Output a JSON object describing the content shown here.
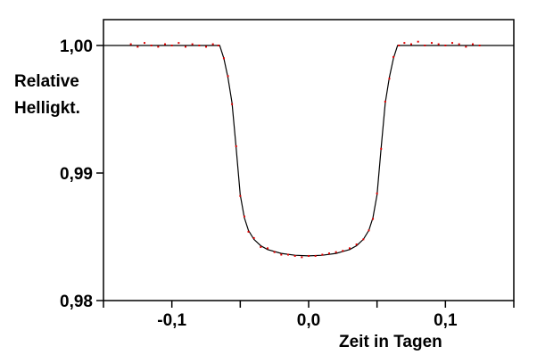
{
  "chart_data": {
    "type": "scatter",
    "title": "",
    "xlabel": "Zeit in Tagen",
    "ylabel_lines": [
      "Relative",
      "Hellig​kt."
    ],
    "xlim": [
      -0.15,
      0.15
    ],
    "ylim": [
      0.98,
      1.002
    ],
    "x_ticks": [
      {
        "value": -0.1,
        "label": "-0,1"
      },
      {
        "value": 0.0,
        "label": "0,0"
      },
      {
        "value": 0.1,
        "label": "0,1"
      }
    ],
    "y_ticks": [
      {
        "value": 1.0,
        "label": "1,00"
      },
      {
        "value": 0.99,
        "label": "0,99"
      },
      {
        "value": 0.98,
        "label": "0,98"
      }
    ],
    "grid": false,
    "legend": "none",
    "series": [
      {
        "kind": "line",
        "color": "#000000",
        "x": [
          -0.15,
          -0.065,
          -0.062,
          -0.059,
          -0.056,
          -0.053,
          -0.05,
          -0.047,
          -0.044,
          -0.04,
          -0.035,
          -0.03,
          -0.02,
          -0.01,
          0.0,
          0.01,
          0.02,
          0.03,
          0.035,
          0.04,
          0.044,
          0.047,
          0.05,
          0.053,
          0.056,
          0.059,
          0.062,
          0.065,
          0.15
        ],
        "y": [
          1.0,
          1.0,
          0.999,
          0.9975,
          0.9955,
          0.992,
          0.9883,
          0.9865,
          0.9855,
          0.9848,
          0.9843,
          0.984,
          0.9837,
          0.98355,
          0.9835,
          0.98355,
          0.9837,
          0.984,
          0.9843,
          0.9848,
          0.9855,
          0.9865,
          0.9883,
          0.992,
          0.9955,
          0.9975,
          0.999,
          1.0,
          1.0
        ]
      },
      {
        "kind": "scatter",
        "color": "#e00000",
        "x": [
          -0.13,
          -0.125,
          -0.12,
          -0.115,
          -0.11,
          -0.105,
          -0.1,
          -0.095,
          -0.09,
          -0.085,
          -0.08,
          -0.075,
          -0.07,
          -0.066,
          -0.062,
          -0.059,
          -0.056,
          -0.053,
          -0.05,
          -0.047,
          -0.044,
          -0.04,
          -0.035,
          -0.03,
          -0.025,
          -0.02,
          -0.015,
          -0.01,
          -0.005,
          0.0,
          0.005,
          0.01,
          0.015,
          0.02,
          0.025,
          0.03,
          0.035,
          0.04,
          0.044,
          0.047,
          0.05,
          0.053,
          0.056,
          0.059,
          0.062,
          0.066,
          0.07,
          0.075,
          0.08,
          0.085,
          0.09,
          0.095,
          0.1,
          0.105,
          0.11,
          0.115,
          0.12,
          0.125
        ],
        "y": [
          1.0001,
          0.9999,
          1.0002,
          1.0,
          0.9999,
          1.0001,
          1.0,
          1.0002,
          0.9999,
          1.0001,
          1.0,
          0.9999,
          1.0001,
          1.0,
          0.999,
          0.9976,
          0.9954,
          0.9921,
          0.9882,
          0.9866,
          0.9854,
          0.9849,
          0.9842,
          0.9841,
          0.9838,
          0.9836,
          0.9836,
          0.9835,
          0.9834,
          0.9835,
          0.9835,
          0.9836,
          0.9837,
          0.9838,
          0.9839,
          0.9841,
          0.9844,
          0.9848,
          0.9855,
          0.9864,
          0.9884,
          0.9919,
          0.9956,
          0.9974,
          0.9991,
          1.0,
          1.0002,
          1.0001,
          1.0003,
          1.0,
          1.0002,
          1.0001,
          1.0,
          1.0002,
          1.0001,
          0.9999,
          1.0001,
          1.0
        ]
      }
    ]
  }
}
